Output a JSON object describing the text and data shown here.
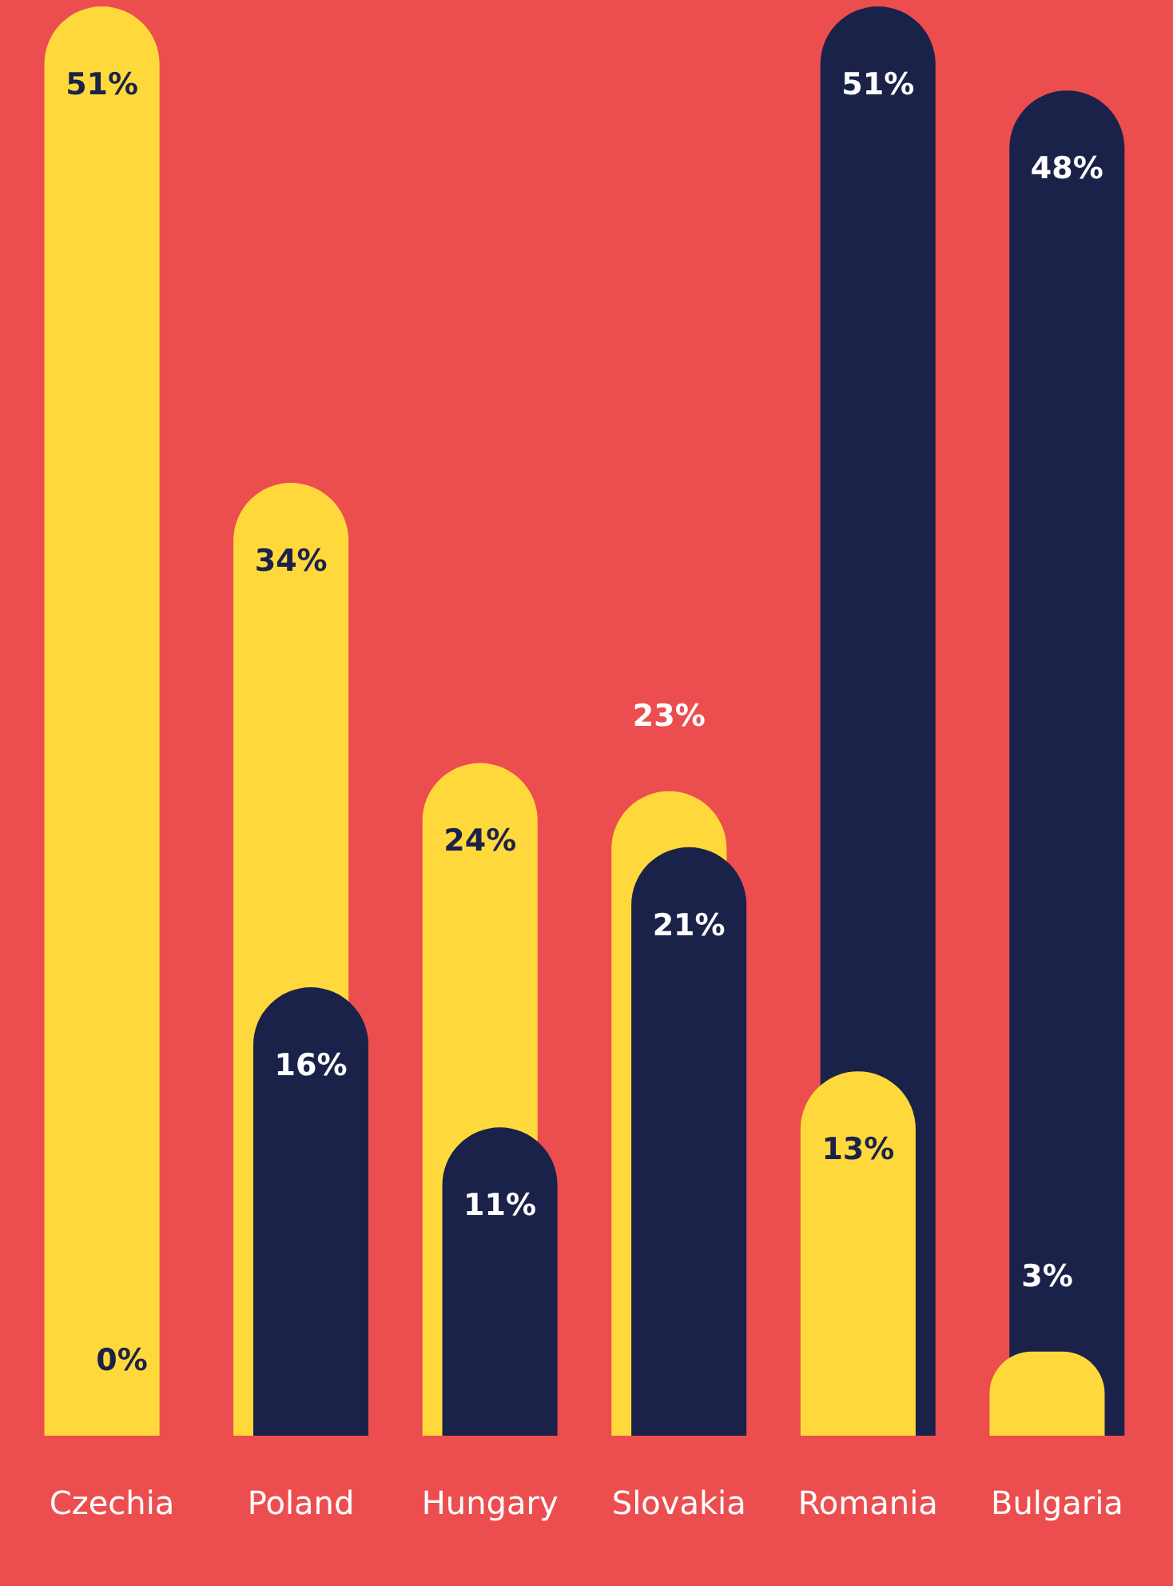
{
  "chart_data": {
    "type": "bar",
    "categories": [
      "Czechia",
      "Poland",
      "Hungary",
      "Slovakia",
      "Romania",
      "Bulgaria"
    ],
    "series": [
      {
        "color": "#ffd93b",
        "values": [
          51,
          34,
          24,
          23,
          13,
          3
        ],
        "value_labels": [
          "51%",
          "34%",
          "24%",
          "23%",
          "13%",
          "3%"
        ]
      },
      {
        "color": "#1b224a",
        "values": [
          0,
          16,
          11,
          21,
          51,
          48
        ],
        "value_labels": [
          "0%",
          "16%",
          "11%",
          "21%",
          "51%",
          "48%"
        ]
      }
    ],
    "grid": false,
    "legend": false
  }
}
